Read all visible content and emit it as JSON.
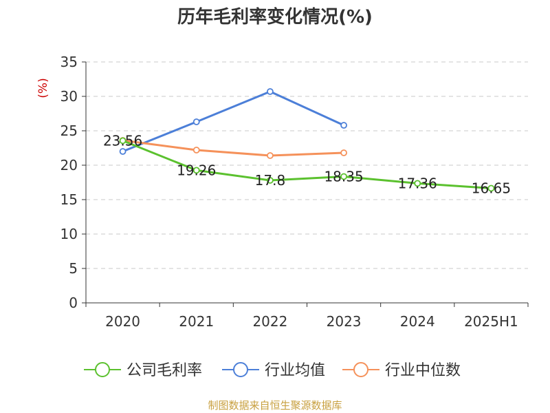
{
  "title": "历年毛利率变化情况(%)",
  "source": "制图数据来自恒生聚源数据库",
  "chart_data": {
    "type": "line",
    "title": "历年毛利率变化情况(%)",
    "ylabel": "(%)",
    "xlabel": "",
    "categories": [
      "2020",
      "2021",
      "2022",
      "2023",
      "2024",
      "2025H1"
    ],
    "ylim": [
      0,
      35
    ],
    "yticks": [
      0,
      5,
      10,
      15,
      20,
      25,
      30,
      35
    ],
    "grid": true,
    "legend_position": "bottom",
    "series": [
      {
        "name": "公司毛利率",
        "color": "#5bc12e",
        "values": [
          23.56,
          19.26,
          17.8,
          18.35,
          17.36,
          16.65
        ],
        "labels": [
          "23.56",
          "19.26",
          "17.8",
          "18.35",
          "17.36",
          "16.65"
        ]
      },
      {
        "name": "行业均值",
        "color": "#4c7fd8",
        "values": [
          22.0,
          26.3,
          30.7,
          25.8,
          null,
          null
        ]
      },
      {
        "name": "行业中位数",
        "color": "#f5915a",
        "values": [
          23.6,
          22.2,
          21.4,
          21.8,
          null,
          null
        ]
      }
    ]
  }
}
